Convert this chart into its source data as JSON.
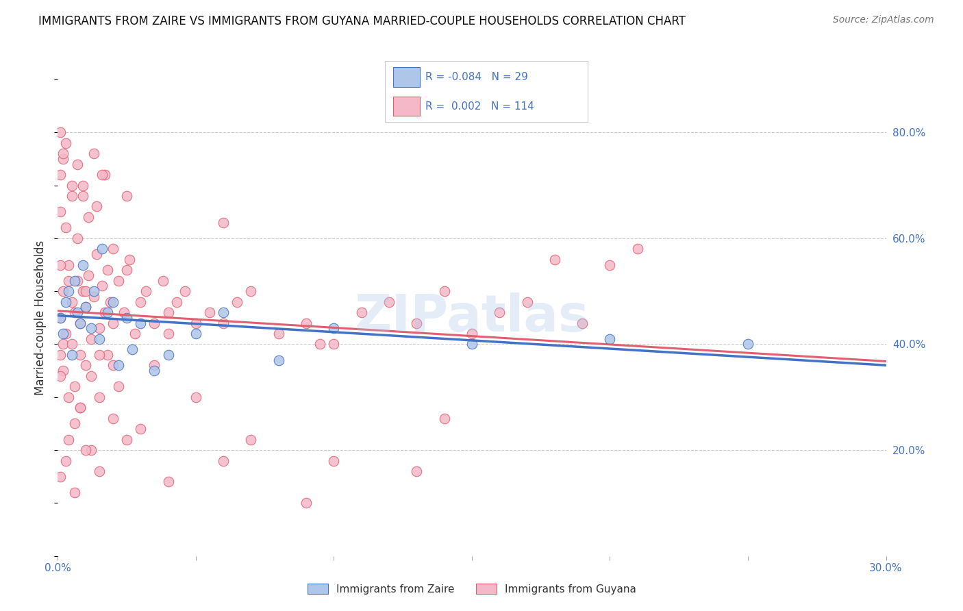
{
  "title": "IMMIGRANTS FROM ZAIRE VS IMMIGRANTS FROM GUYANA MARRIED-COUPLE HOUSEHOLDS CORRELATION CHART",
  "source": "Source: ZipAtlas.com",
  "ylabel": "Married-couple Households",
  "xlim": [
    0.0,
    0.3
  ],
  "ylim": [
    0.0,
    0.9
  ],
  "y_ticks_right": [
    0.2,
    0.4,
    0.6,
    0.8
  ],
  "y_tick_labels_right": [
    "20.0%",
    "40.0%",
    "60.0%",
    "80.0%"
  ],
  "zaire_R": -0.084,
  "zaire_N": 29,
  "guyana_R": 0.002,
  "guyana_N": 114,
  "zaire_color": "#aec6e8",
  "zaire_line_color": "#4472c4",
  "guyana_color": "#f4b8c8",
  "guyana_line_color": "#e06070",
  "legend_label_zaire": "Immigrants from Zaire",
  "legend_label_guyana": "Immigrants from Guyana",
  "watermark": "ZIPatlas",
  "background_color": "#ffffff",
  "grid_color": "#cccccc",
  "zaire_x": [
    0.001,
    0.002,
    0.003,
    0.004,
    0.005,
    0.006,
    0.007,
    0.008,
    0.009,
    0.01,
    0.012,
    0.013,
    0.015,
    0.016,
    0.018,
    0.02,
    0.022,
    0.025,
    0.027,
    0.03,
    0.035,
    0.04,
    0.05,
    0.06,
    0.08,
    0.1,
    0.15,
    0.2,
    0.25
  ],
  "zaire_y": [
    0.45,
    0.42,
    0.48,
    0.5,
    0.38,
    0.52,
    0.46,
    0.44,
    0.55,
    0.47,
    0.43,
    0.5,
    0.41,
    0.58,
    0.46,
    0.48,
    0.36,
    0.45,
    0.39,
    0.44,
    0.35,
    0.38,
    0.42,
    0.46,
    0.37,
    0.43,
    0.4,
    0.41,
    0.4
  ],
  "guyana_x": [
    0.001,
    0.002,
    0.003,
    0.004,
    0.005,
    0.006,
    0.007,
    0.008,
    0.009,
    0.01,
    0.011,
    0.012,
    0.013,
    0.014,
    0.015,
    0.016,
    0.017,
    0.018,
    0.019,
    0.02,
    0.022,
    0.024,
    0.026,
    0.028,
    0.03,
    0.032,
    0.035,
    0.038,
    0.04,
    0.043,
    0.046,
    0.05,
    0.055,
    0.06,
    0.065,
    0.07,
    0.08,
    0.09,
    0.1,
    0.11,
    0.12,
    0.13,
    0.14,
    0.15,
    0.16,
    0.17,
    0.18,
    0.19,
    0.2,
    0.21,
    0.001,
    0.002,
    0.004,
    0.006,
    0.008,
    0.01,
    0.012,
    0.015,
    0.018,
    0.022,
    0.001,
    0.003,
    0.005,
    0.007,
    0.009,
    0.011,
    0.014,
    0.017,
    0.02,
    0.025,
    0.001,
    0.002,
    0.003,
    0.005,
    0.007,
    0.009,
    0.013,
    0.016,
    0.001,
    0.002,
    0.004,
    0.006,
    0.008,
    0.012,
    0.02,
    0.03,
    0.05,
    0.07,
    0.1,
    0.14,
    0.001,
    0.003,
    0.006,
    0.01,
    0.015,
    0.025,
    0.04,
    0.06,
    0.09,
    0.13,
    0.002,
    0.008,
    0.02,
    0.04,
    0.001,
    0.005,
    0.015,
    0.035,
    0.06,
    0.095,
    0.001,
    0.004,
    0.01,
    0.025
  ],
  "guyana_y": [
    0.45,
    0.5,
    0.42,
    0.55,
    0.48,
    0.46,
    0.52,
    0.44,
    0.5,
    0.47,
    0.53,
    0.41,
    0.49,
    0.57,
    0.43,
    0.51,
    0.46,
    0.54,
    0.48,
    0.44,
    0.52,
    0.46,
    0.56,
    0.42,
    0.48,
    0.5,
    0.44,
    0.52,
    0.46,
    0.48,
    0.5,
    0.44,
    0.46,
    0.63,
    0.48,
    0.5,
    0.42,
    0.44,
    0.4,
    0.46,
    0.48,
    0.44,
    0.5,
    0.42,
    0.46,
    0.48,
    0.56,
    0.44,
    0.55,
    0.58,
    0.38,
    0.35,
    0.3,
    0.32,
    0.28,
    0.36,
    0.34,
    0.3,
    0.38,
    0.32,
    0.65,
    0.62,
    0.68,
    0.6,
    0.7,
    0.64,
    0.66,
    0.72,
    0.58,
    0.68,
    0.72,
    0.75,
    0.78,
    0.7,
    0.74,
    0.68,
    0.76,
    0.72,
    0.8,
    0.76,
    0.22,
    0.25,
    0.28,
    0.2,
    0.26,
    0.24,
    0.3,
    0.22,
    0.18,
    0.26,
    0.15,
    0.18,
    0.12,
    0.2,
    0.16,
    0.22,
    0.14,
    0.18,
    0.1,
    0.16,
    0.4,
    0.38,
    0.36,
    0.42,
    0.34,
    0.4,
    0.38,
    0.36,
    0.44,
    0.4,
    0.55,
    0.52,
    0.5,
    0.54
  ]
}
